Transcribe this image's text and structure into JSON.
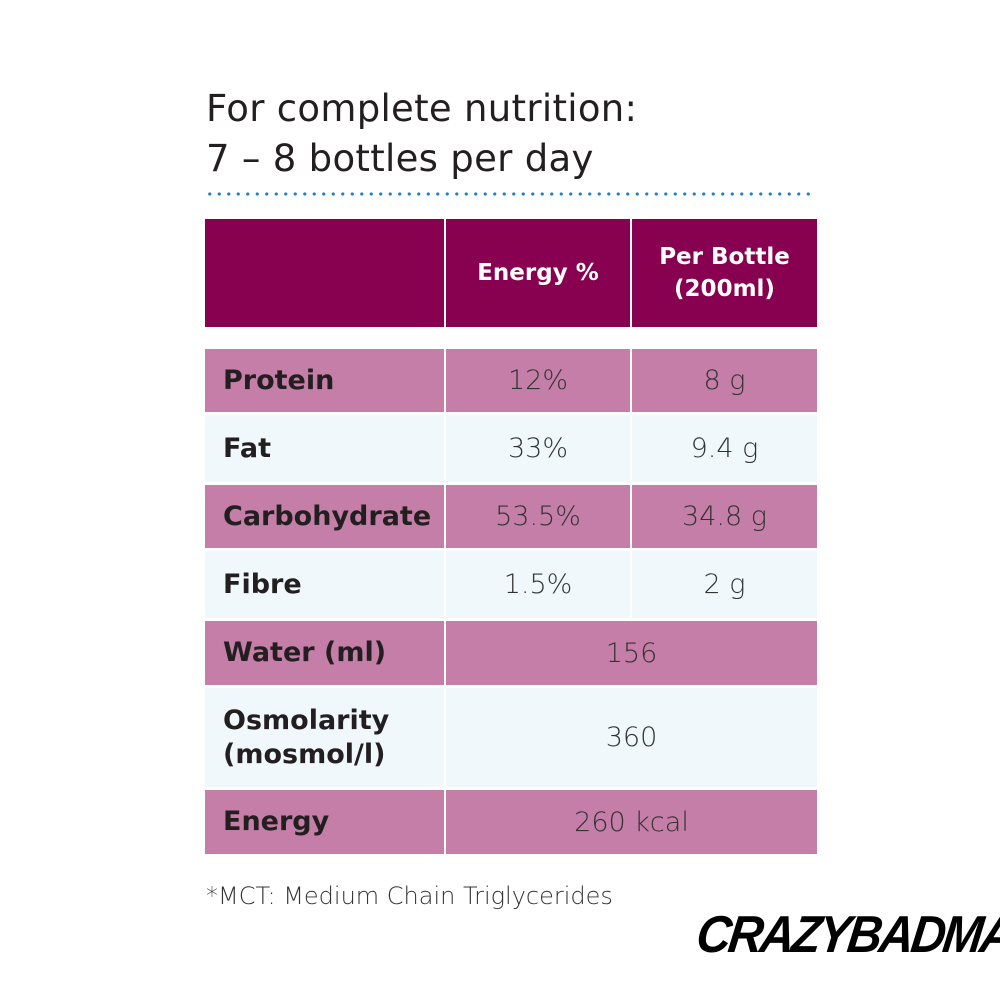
{
  "title": {
    "line1": "For complete nutrition:",
    "line2": "7 – 8 bottles per day"
  },
  "colors": {
    "header": "#880050",
    "row_dark": "#c47ea8",
    "row_light": "#f0f8fc",
    "dots": "#1a7fc6"
  },
  "table": {
    "headers": [
      "",
      "Energy %",
      "Per Bottle (200ml)"
    ],
    "rows": [
      {
        "label": "Protein",
        "energy": "12%",
        "per_bottle": "8 g"
      },
      {
        "label": "Fat",
        "energy": "33%",
        "per_bottle": "9.4 g"
      },
      {
        "label": "Carbohydrate",
        "energy": "53.5%",
        "per_bottle": "34.8 g"
      },
      {
        "label": "Fibre",
        "energy": "1.5%",
        "per_bottle": "2 g"
      },
      {
        "label": "Water (ml)",
        "value": "156"
      },
      {
        "label": "Osmolarity (mosmol/l)",
        "value": "360"
      },
      {
        "label": "Energy",
        "value": "260 kcal"
      }
    ]
  },
  "footnote": "*MCT: Medium Chain Triglycerides",
  "logo": "CRAZYBADMAN"
}
